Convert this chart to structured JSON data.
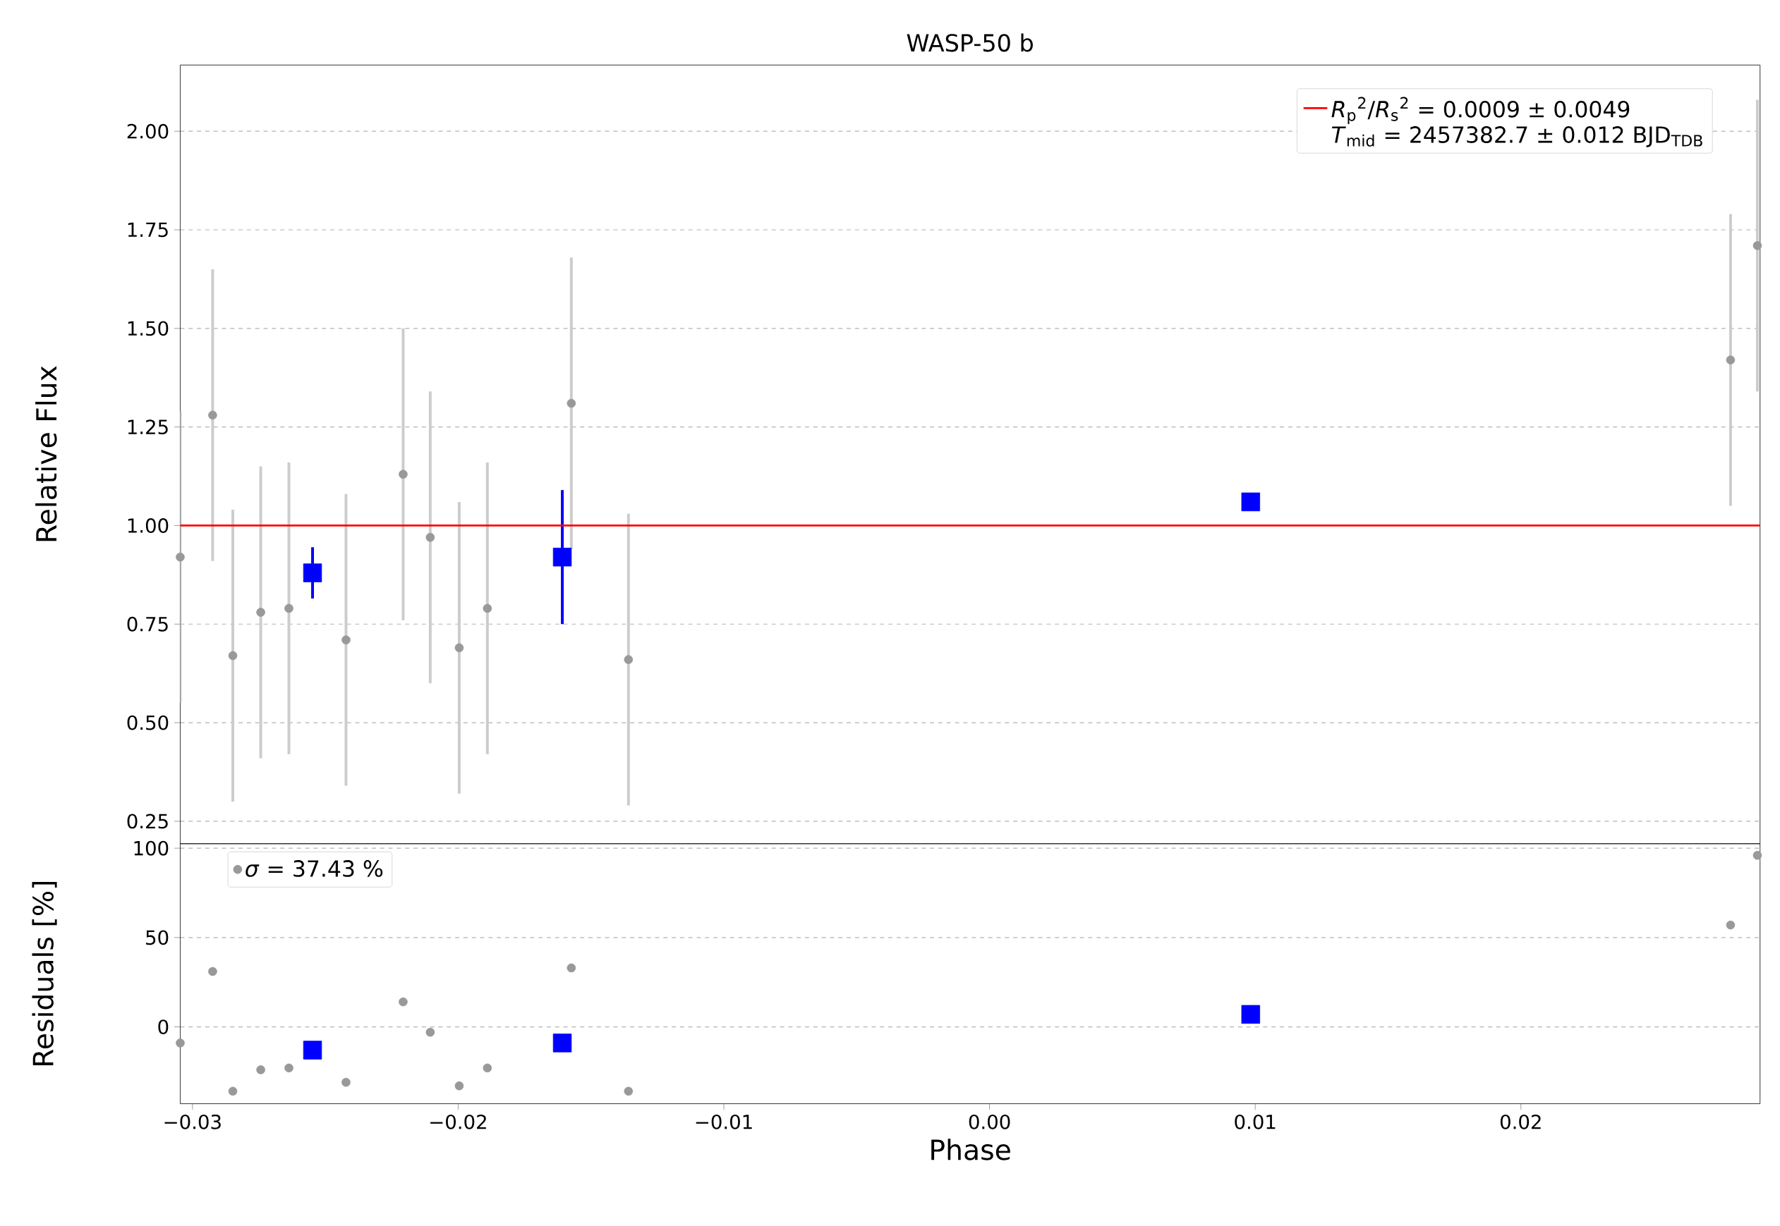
{
  "chart_data": [
    {
      "type": "scatter",
      "title": "WASP-50 b",
      "ylabel": "Relative Flux",
      "xlim": [
        -0.03046,
        0.029
      ],
      "ylim": [
        0.193,
        2.168
      ],
      "yticks": [
        0.25,
        {
          "value": 0.5,
          "label": "0.50"
        },
        0.75,
        {
          "value": 1,
          "label": "1.00"
        },
        1.25,
        {
          "value": 1.5,
          "label": "1.50"
        },
        1.75,
        {
          "value": 2,
          "label": "2.00"
        }
      ],
      "tick_labels": "y",
      "grid": "y",
      "legend": "top right",
      "annotations": [
        "*T*$_{mid}$ = 2457382.7 ± 0.012 BJD$_{TDB}$"
      ],
      "series": [
        {
          "marker": "circle",
          "color": "#999999",
          "x": [
            -0.03046,
            -0.02924,
            -0.02848,
            -0.02743,
            -0.02637,
            -0.02422,
            -0.02207,
            -0.02105,
            -0.01996,
            -0.0189,
            -0.01574,
            -0.01359,
            0.00983,
            0.02789,
            0.0289
          ],
          "values": [
            0.92,
            1.28,
            0.67,
            0.78,
            0.79,
            0.71,
            1.13,
            0.97,
            0.69,
            0.79,
            1.31,
            0.66,
            null,
            1.42,
            1.71
          ],
          "errors": [
            0.37,
            0.37,
            0.37,
            0.37,
            0.37,
            0.37,
            0.37,
            0.37,
            0.37,
            0.37,
            0.37,
            0.37,
            null,
            0.37,
            0.37
          ]
        },
        {
          "marker": "square",
          "color": "#0000ff",
          "x": [
            -0.02548,
            -0.01608,
            0.00983
          ],
          "values": [
            0.88,
            0.92,
            1.06
          ],
          "errors": [
            0.065,
            0.17,
            null
          ]
        },
        {
          "type": "line",
          "marker": "none",
          "color": "#ff0000",
          "name": "*R*$_{p}$$^{2}$/*R*$_{s}$$^{2}$ = 0.0009 ± 0.0049",
          "x": [
            -0.03046,
            0.029
          ],
          "values": [
            1.0,
            1.0
          ]
        }
      ]
    },
    {
      "type": "scatter",
      "xlabel": "Phase",
      "ylabel": "Residuals [%]",
      "xlim": [
        -0.03046,
        0.029
      ],
      "ylim": [
        -43,
        102.5
      ],
      "xticks": [
        {
          "value": -0.03,
          "label": "−0.03"
        },
        {
          "value": -0.02,
          "label": "−0.02"
        },
        {
          "value": -0.01,
          "label": "−0.01"
        },
        {
          "value": 0,
          "label": "0.00"
        },
        0.01,
        0.02
      ],
      "yticks": [
        0,
        50,
        100
      ],
      "grid": "y",
      "legend": "top left",
      "series": [
        {
          "marker": "circle",
          "color": "#999999",
          "name": "*σ* = 37.43 %",
          "x": [
            -0.03046,
            -0.02924,
            -0.02848,
            -0.02743,
            -0.02637,
            -0.02422,
            -0.02207,
            -0.02105,
            -0.01996,
            -0.0189,
            -0.01574,
            -0.01359,
            0.00983,
            0.02789,
            0.0289
          ],
          "values": [
            -9,
            31,
            -36,
            -24,
            -23,
            -31,
            14,
            -3,
            -33,
            -23,
            33,
            -36,
            null,
            57,
            96
          ]
        },
        {
          "marker": "square",
          "color": "#0000ff",
          "x": [
            -0.02548,
            -0.01608,
            0.00983
          ],
          "values": [
            -13,
            -9,
            7
          ]
        }
      ]
    }
  ]
}
